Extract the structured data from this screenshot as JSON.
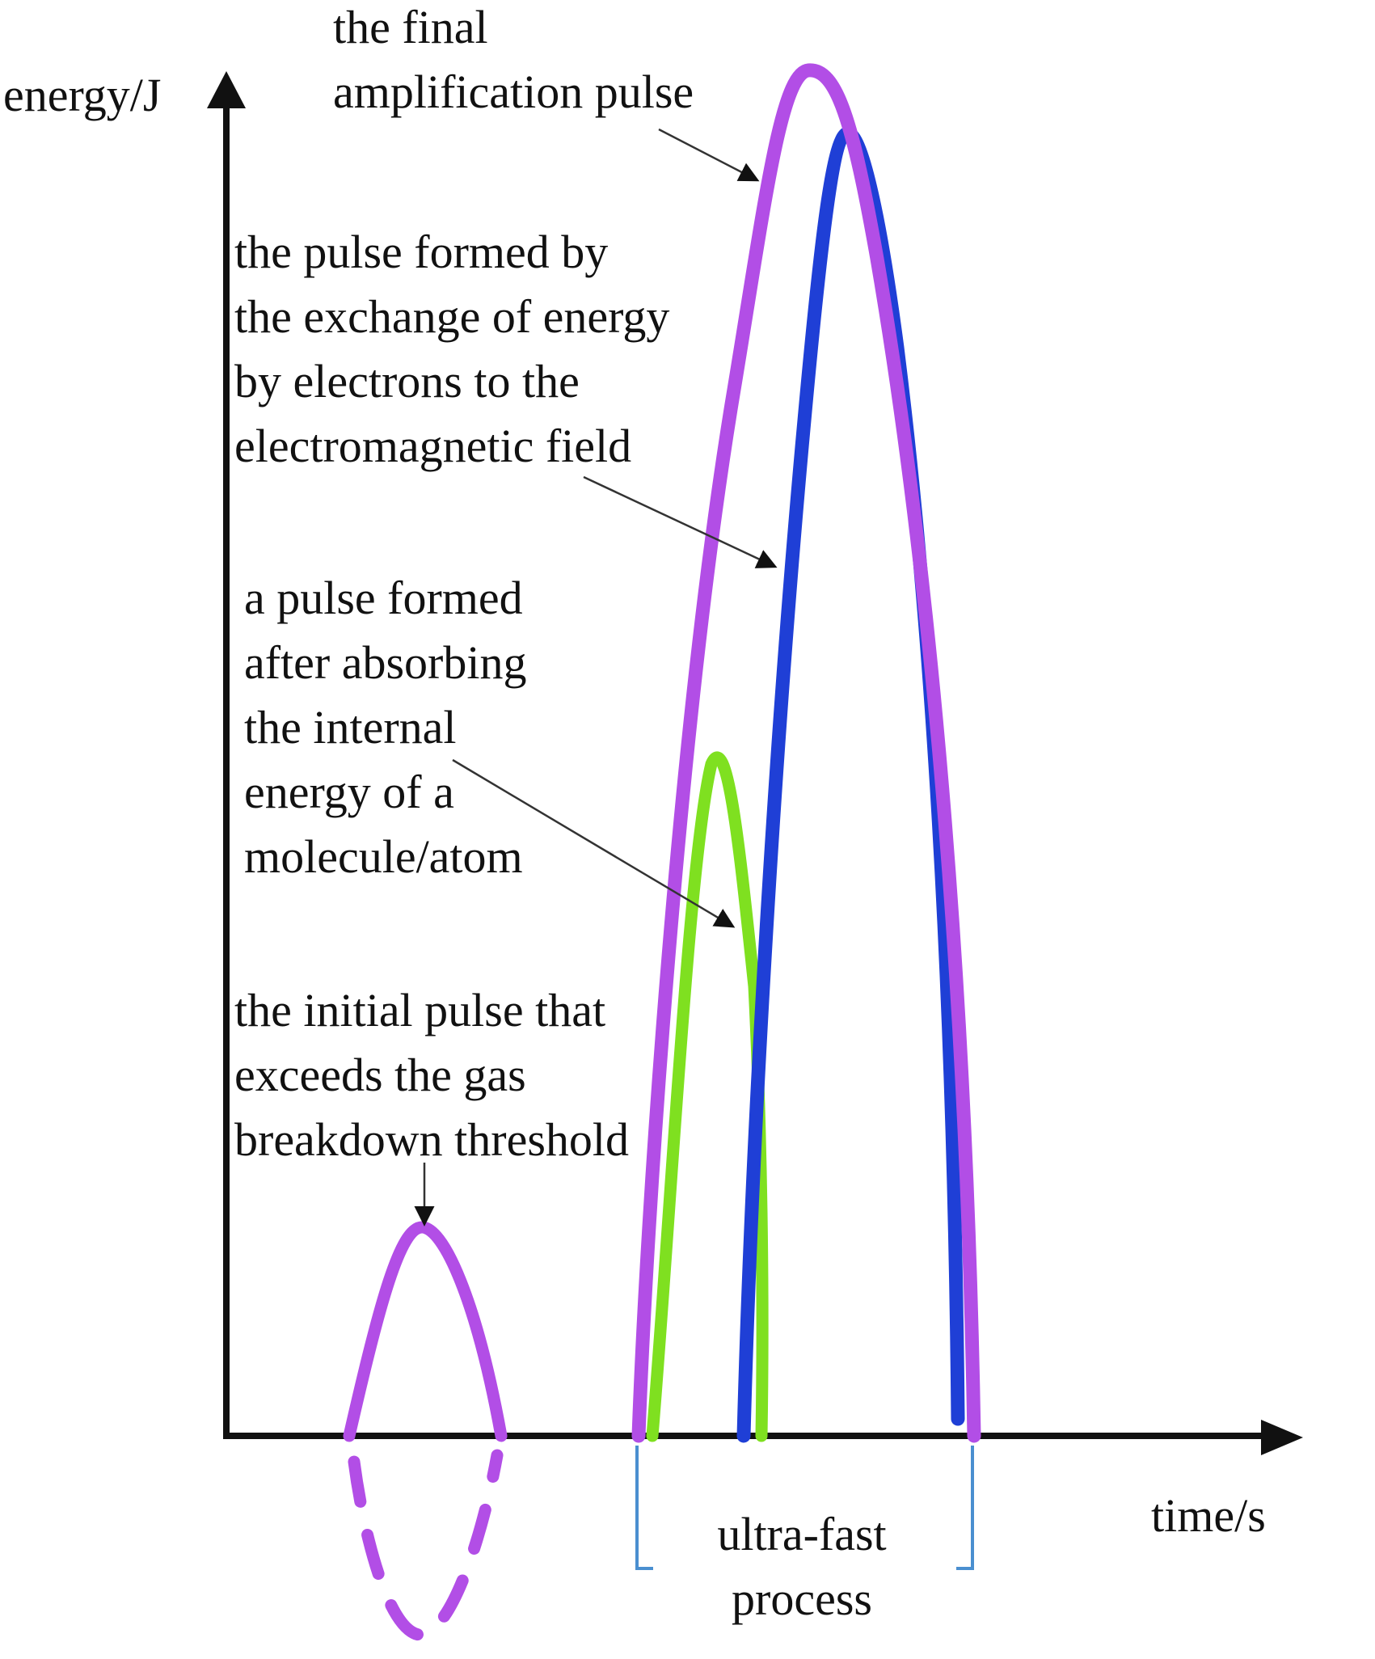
{
  "axes": {
    "y_label": "energy/J",
    "x_label": "time/s"
  },
  "labels": {
    "final_pulse": [
      "the final",
      "amplification pulse"
    ],
    "exchange_pulse": [
      "the pulse formed by",
      "the exchange of energy",
      "by electrons to the",
      "electromagnetic field"
    ],
    "absorbing_pulse": [
      "a pulse formed",
      "after absorbing",
      "the internal",
      "energy of a",
      "molecule/atom"
    ],
    "initial_pulse": [
      "the initial pulse that",
      "exceeds the gas",
      "breakdown threshold"
    ],
    "ultrafast": [
      "ultra-fast",
      "process"
    ]
  },
  "colors": {
    "axis": "#111111",
    "purple_pulse": "#b24ee6",
    "blue_pulse": "#1f3fd6",
    "green_pulse": "#7fe020",
    "bracket": "#4a8fd0",
    "arrow": "#333333"
  }
}
